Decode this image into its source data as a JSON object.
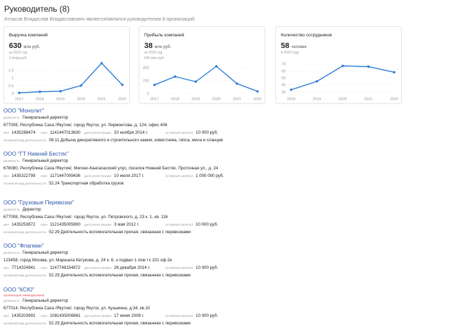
{
  "header": {
    "title": "Руководитель (8)",
    "subtitle": "Атласов Владислав Владиславович является/являлся руководителем 8 организаций"
  },
  "cards": [
    {
      "title": "Выручка компаний",
      "value": "630",
      "unit": "млн руб.",
      "sub": "за 2023 год",
      "scale": "3 млрд руб.",
      "chart_data": {
        "type": "line",
        "x": [
          "2017",
          "2018",
          "2019",
          "2020",
          "2021",
          "2022"
        ],
        "values": [
          0.03,
          0.1,
          0.13,
          0.5,
          1.95,
          0.55
        ],
        "ytick_labels": [
          "1.5",
          "1",
          "0.5",
          "0"
        ],
        "yticks": [
          1.5,
          1,
          0.5,
          0
        ],
        "ylim": [
          0,
          2.0
        ],
        "color": "#2a7bd8"
      }
    },
    {
      "title": "Прибыль компаний",
      "value": "38",
      "unit": "млн руб.",
      "sub": "за 2023 год",
      "scale": "600 млн руб.",
      "chart_data": {
        "type": "line",
        "x": [
          "2017",
          "2018",
          "2019",
          "2020",
          "2021",
          "2022"
        ],
        "values": [
          130,
          260,
          180,
          420,
          150,
          30
        ],
        "ytick_labels": [
          "400",
          "200",
          "0"
        ],
        "yticks": [
          400,
          200,
          0
        ],
        "ylim": [
          0,
          480
        ],
        "color": "#2a7bd8"
      }
    },
    {
      "title": "Количество сотрудников",
      "value": "58",
      "unit": "человек",
      "sub": "в 2023 году",
      "scale": "",
      "chart_data": {
        "type": "line",
        "x": [
          "2018",
          "2019",
          "2020",
          "2021",
          "2022"
        ],
        "values": [
          33,
          45,
          67,
          66,
          58
        ],
        "ytick_labels": [
          "70",
          "60",
          "50",
          "40",
          "30"
        ],
        "yticks": [
          70,
          60,
          50,
          40,
          30
        ],
        "ylim": [
          28,
          72
        ],
        "color": "#2a7bd8"
      }
    }
  ],
  "labels": {
    "position": "должность",
    "inn": "инн",
    "ogrn": "огрн",
    "reg_date": "дата регистрации",
    "capital": "уставный капитал",
    "activity": "основной вид деятельности"
  },
  "companies": [
    {
      "name": "ООО \"Монолит\"",
      "tag": "",
      "position": "Генеральный директор",
      "address": "677008, Республика Саха /Якутия/, город Якутск, ул. Лермонтова, д. 124, офис 406",
      "inn": "1435288474",
      "ogrn": "1141447013630",
      "reg_date": "20 ноября 2014 г.",
      "capital": "10 000 руб.",
      "activity": "08.11 Добыча декоративного и строительного камня, известняка, гипса, мела и сланцев"
    },
    {
      "name": "ООО \"ГТ Нижний Бестях\"",
      "tag": "",
      "position": "Генеральный директор",
      "address": "678080, Республика Саха /Якутия/, Мегино-Кангаласский улус, поселок Нижний Бестях, Проточная ул., д. 24",
      "inn": "1435322799",
      "ogrn": "1171447009436",
      "reg_date": "10 июля 2017 г.",
      "capital": "1 000 000 руб.",
      "activity": "52.24 Транспортная обработка грузов"
    },
    {
      "name": "ООО \"Грузовые Перевозки\"",
      "tag": "",
      "position": "Директор",
      "address": "677008, Республика Саха /Якутия/, город Якутск, ул. Петровского, д. 23 к. 1, кв. 116",
      "inn": "1435253672",
      "ogrn": "1121435005890",
      "reg_date": "3 мая 2012 г.",
      "capital": "10 000 руб.",
      "activity": "52.29 Деятельность вспомогательная прочая, связанная с перевозками"
    },
    {
      "name": "ООО \"Флагман\"",
      "tag": "",
      "position": "Генеральный директор",
      "address": "123458, город Москва, ул. Маршала Катукова, д. 24 к. 6, э подвал 1 пом I к 101 оф 2е",
      "inn": "7714324941",
      "ogrn": "1147748154872",
      "reg_date": "26 декабря 2014 г.",
      "capital": "10 000 руб.",
      "activity": "52.29 Деятельность вспомогательная прочая, связанная с перевозками"
    },
    {
      "name": "ООО \"КСЮ\"",
      "tag": "организация ликвидирована",
      "position": "Генеральный директор",
      "address": "677014, Республика Саха /Якутия/, город Якутск, ул. Кузьмина, д.34, кв.10",
      "inn": "1435203992",
      "ogrn": "1081435006861",
      "reg_date": "17 июня 2008 г.",
      "capital": "10 000 руб.",
      "activity": "52.29 Деятельность вспомогательная прочая, связанная с перевозками"
    }
  ]
}
